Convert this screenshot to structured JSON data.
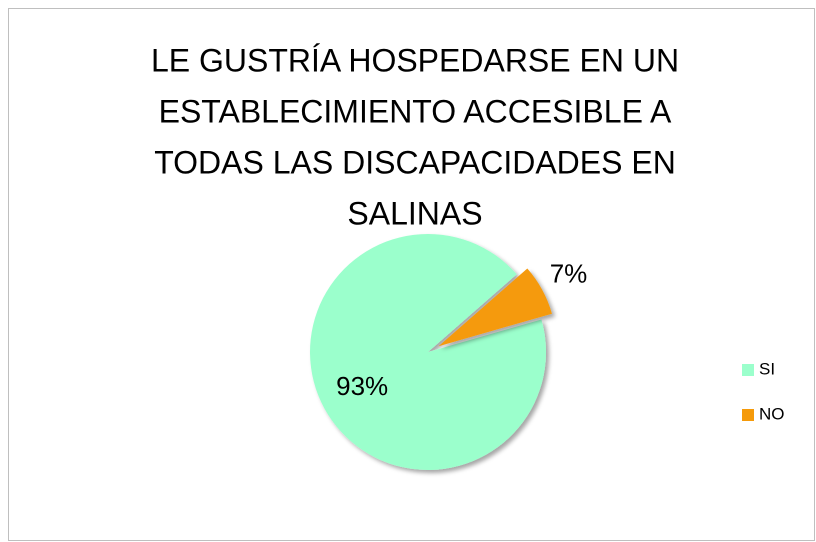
{
  "chart_data": {
    "type": "pie",
    "title": [
      "LE GUSTRÍA HOSPEDARSE EN UN",
      "ESTABLECIMIENTO ACCESIBLE A",
      "TODAS LAS DISCAPACIDADES EN",
      "SALINAS"
    ],
    "categories": [
      "SI",
      "NO"
    ],
    "values": [
      93,
      7
    ],
    "value_labels": [
      "93%",
      "7%"
    ],
    "colors": [
      "#9bffcc",
      "#f59a0a"
    ],
    "legend": "right"
  }
}
